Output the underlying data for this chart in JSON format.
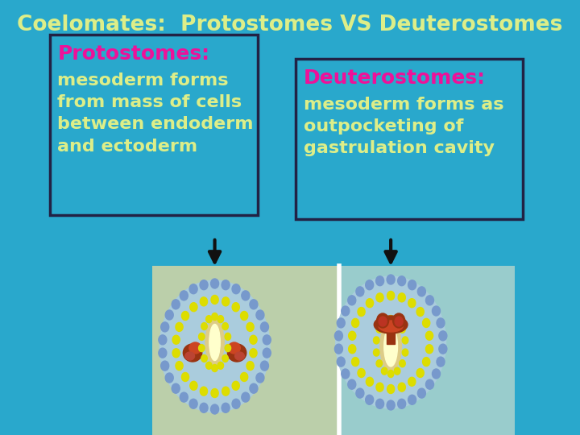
{
  "background_color": "#29A8CC",
  "title": "Coelomates:  Protostomes VS Deuterostomes",
  "title_color": "#DDEE88",
  "title_fontsize": 19,
  "box_left_text_header": "Protostomes:",
  "box_left_text_body": "mesoderm forms\nfrom mass of cells\nbetween endoderm\nand ectoderm",
  "box_right_text_header": "Deuterostomes:",
  "box_right_text_body": "mesoderm forms as\noutpocketing of\ngastrulation cavity",
  "header_color": "#EE1199",
  "body_color": "#DDEE88",
  "box_bg_color": "#29A8CC",
  "box_edge_color": "#222244",
  "bottom_left_color": "#BBCFAA",
  "bottom_right_color": "#99CCCC",
  "divider_color": "#FFFFFF",
  "arrow_color": "#111111",
  "text_fontsize": 16,
  "header_fontsize": 18,
  "outer_bead_color": "#7799CC",
  "inner_bead_color": "#DDDD00",
  "light_blue_fill": "#AACCDD",
  "cream_fill": "#FFFFCC",
  "dark_red": "#993311",
  "med_red": "#CC4422"
}
